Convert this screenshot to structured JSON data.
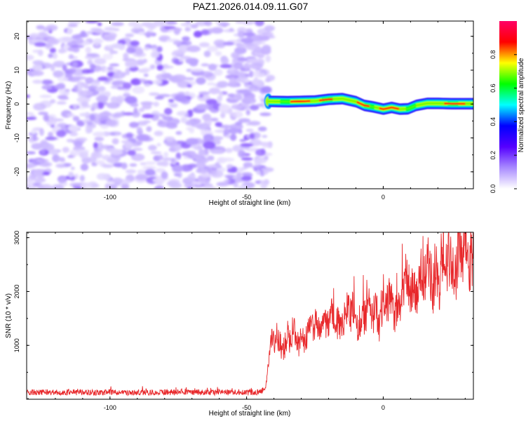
{
  "figure": {
    "title": "PAZ1.2026.014.09.11.G07"
  },
  "chart_data": [
    {
      "type": "heatmap",
      "title": "PAZ1.2026.014.09.11.G07",
      "xlabel": "Height of straight line (km)",
      "ylabel": "Frequency (Hz)",
      "xlim": [
        -130.5,
        33
      ],
      "ylim": [
        -25,
        24.5
      ],
      "xticks": [
        -100,
        -50,
        0
      ],
      "xtick_labels": [
        "-100",
        "-50",
        "0"
      ],
      "yticks": [
        -20,
        -10,
        0,
        10,
        20
      ],
      "ytick_labels": [
        "-20",
        "-10",
        "0",
        "10",
        "20"
      ],
      "noise_region": {
        "x_from": -130.5,
        "x_to": -42,
        "low_amplitude_range": [
          0.0,
          0.15
        ]
      },
      "signal_track": {
        "x": [
          -42,
          -35,
          -30,
          -25,
          -20,
          -15,
          -10,
          -7,
          -4,
          0,
          3,
          6,
          9,
          12,
          16,
          20,
          25,
          33
        ],
        "freq_hz": [
          0.8,
          0.7,
          0.8,
          0.9,
          1.4,
          1.6,
          0.7,
          -0.4,
          -0.8,
          -1.5,
          -1.0,
          -1.5,
          -1.4,
          -0.4,
          0.2,
          0.2,
          0.1,
          0.1
        ],
        "peak_amplitude": 1.0
      },
      "colorbar": {
        "label": "Normalized spectral amplitude",
        "range": [
          0,
          1
        ],
        "ticks": [
          0.0,
          0.2,
          0.4,
          0.6,
          0.8
        ],
        "tick_labels": [
          "0.0",
          "0.2",
          "0.4",
          "0.6",
          "0.8"
        ],
        "colors": [
          "#ffffff",
          "#a98bff",
          "#5500ff",
          "#0000ff",
          "#00ffff",
          "#00ff00",
          "#ffff00",
          "#ff0000",
          "#ff0066"
        ]
      }
    },
    {
      "type": "line",
      "xlabel": "Height of straight line (km)",
      "ylabel": "SNR (10 * v/v)",
      "xlim": [
        -130.5,
        33
      ],
      "ylim": [
        0,
        3100
      ],
      "xticks": [
        -100,
        -50,
        0
      ],
      "xtick_labels": [
        "-100",
        "-50",
        "0"
      ],
      "yticks": [
        1000,
        2000,
        3000
      ],
      "ytick_labels": [
        "1000",
        "2000",
        "3000"
      ],
      "series": [
        {
          "name": "SNR",
          "color": "#e8272a",
          "x": [
            -130.5,
            -120,
            -110,
            -100,
            -90,
            -80,
            -70,
            -60,
            -50,
            -45,
            -43,
            -42,
            -41,
            -38,
            -35,
            -30,
            -25,
            -20,
            -15,
            -10,
            -5,
            0,
            5,
            10,
            15,
            20,
            25,
            30,
            33
          ],
          "y": [
            130,
            130,
            125,
            130,
            125,
            130,
            125,
            130,
            125,
            135,
            200,
            700,
            1000,
            1050,
            1100,
            1150,
            1300,
            1400,
            1500,
            1550,
            1600,
            1700,
            1850,
            2100,
            2250,
            2400,
            2550,
            2700,
            2800
          ]
        }
      ]
    }
  ]
}
